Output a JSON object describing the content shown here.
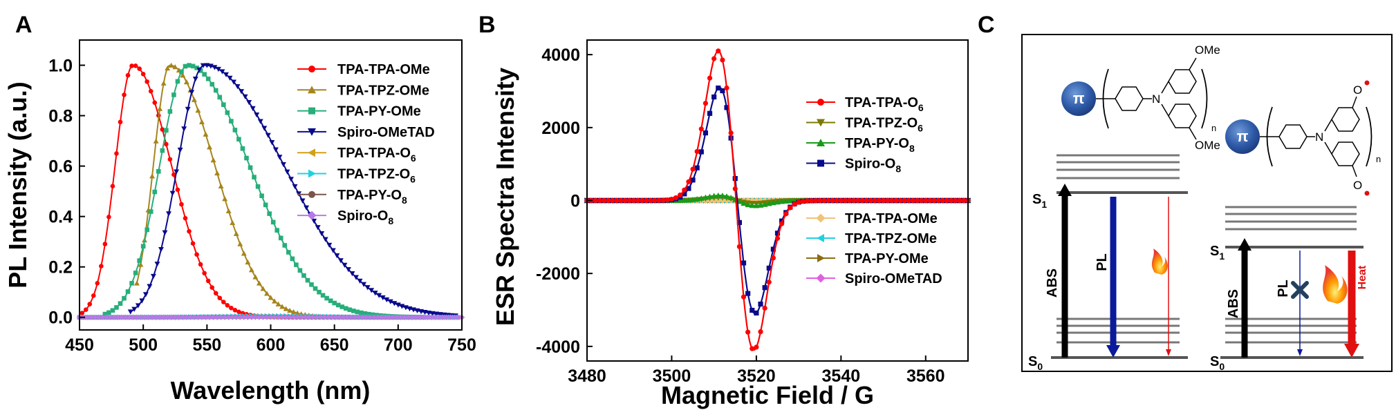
{
  "chart_data": [
    {
      "panel": "A",
      "type": "line",
      "xlabel": "Wavelength (nm)",
      "ylabel": "PL Intensity (a.u.)",
      "xlim": [
        450,
        750
      ],
      "ylim": [
        -0.05,
        1.1
      ],
      "xticks": [
        450,
        500,
        550,
        600,
        650,
        700,
        750
      ],
      "yticks": [
        0.0,
        0.2,
        0.4,
        0.6,
        0.8,
        1.0
      ],
      "xtick_labels": [
        "450",
        "500",
        "550",
        "600",
        "650",
        "700",
        "750"
      ],
      "ytick_labels": [
        "0.0",
        "0.2",
        "0.4",
        "0.6",
        "0.8",
        "1.0"
      ],
      "legend_position": "top-right",
      "series": [
        {
          "name": "TPA-TPA-OMe",
          "label_main": "TPA-TPA-OMe",
          "label_sub": "",
          "color": "#ff0000",
          "marker": "circle",
          "peak": 492,
          "sigma_left": 14,
          "sigma_right": 30,
          "amplitude": 1.0,
          "x_start": 452,
          "x_end": 720
        },
        {
          "name": "TPA-TPZ-OMe",
          "label_main": "TPA-TPZ-OMe",
          "label_sub": "",
          "color": "#a6851b",
          "marker": "triangle-up",
          "peak": 521,
          "sigma_left": 13,
          "sigma_right": 35,
          "amplitude": 1.0,
          "x_start": 495,
          "x_end": 720
        },
        {
          "name": "TPA-PY-OMe",
          "label_main": "TPA-PY-OMe",
          "label_sub": "",
          "color": "#27ae7a",
          "marker": "square",
          "peak": 535,
          "sigma_left": 22,
          "sigma_right": 48,
          "amplitude": 1.0,
          "x_start": 470,
          "x_end": 720
        },
        {
          "name": "Spiro-OMeTAD",
          "label_main": "Spiro-OMeTAD",
          "label_sub": "",
          "color": "#0a0a8c",
          "marker": "triangle-down",
          "peak": 548,
          "sigma_left": 21,
          "sigma_right": 62,
          "amplitude": 1.0,
          "x_start": 490,
          "x_end": 745
        },
        {
          "name": "TPA-TPA-O6",
          "label_main": "TPA-TPA-O",
          "label_sub": "6",
          "color": "#d4a017",
          "marker": "triangle-left",
          "peak": 600,
          "sigma_left": 40,
          "sigma_right": 40,
          "amplitude": 0.003,
          "x_start": 450,
          "x_end": 748
        },
        {
          "name": "TPA-TPZ-O6",
          "label_main": "TPA-TPZ-O",
          "label_sub": "6",
          "color": "#21d0e0",
          "marker": "triangle-right",
          "peak": 600,
          "sigma_left": 40,
          "sigma_right": 40,
          "amplitude": 0.006,
          "x_start": 450,
          "x_end": 748
        },
        {
          "name": "TPA-PY-O8",
          "label_main": "TPA-PY-O",
          "label_sub": "8",
          "color": "#7a5548",
          "marker": "circle",
          "peak": 600,
          "sigma_left": 40,
          "sigma_right": 40,
          "amplitude": 0.002,
          "x_start": 450,
          "x_end": 720
        },
        {
          "name": "Spiro-O8",
          "label_main": "Spiro-O",
          "label_sub": "8",
          "color": "#b67ae8",
          "marker": "diamond",
          "peak": 600,
          "sigma_left": 40,
          "sigma_right": 40,
          "amplitude": 0.001,
          "x_start": 450,
          "x_end": 750
        }
      ]
    },
    {
      "panel": "B",
      "type": "line",
      "xlabel": "Magnetic Field / G",
      "ylabel": "ESR Spectra Intensity",
      "xlim": [
        3480,
        3570
      ],
      "ylim": [
        -4400,
        4400
      ],
      "xticks": [
        3480,
        3500,
        3520,
        3540,
        3560
      ],
      "yticks": [
        -4000,
        -2000,
        0,
        2000,
        4000
      ],
      "xtick_labels": [
        "3480",
        "3500",
        "3520",
        "3540",
        "3560"
      ],
      "ytick_labels": [
        "-4000",
        "-2000",
        "0",
        "2000",
        "4000"
      ],
      "legend_position": "right",
      "series": [
        {
          "name": "TPA-TPA-O6",
          "label_main": "TPA-TPA-O",
          "label_sub": "6",
          "color": "#ff0000",
          "marker": "circle",
          "center": 3515.2,
          "width": 4.2,
          "amplitude": 4100
        },
        {
          "name": "TPA-TPZ-O6",
          "label_main": "TPA-TPZ-O",
          "label_sub": "6",
          "color": "#7a7a00",
          "marker": "triangle-down",
          "center": 3515.5,
          "width": 4.2,
          "amplitude": 80
        },
        {
          "name": "TPA-PY-O8",
          "label_main": "TPA-PY-O",
          "label_sub": "8",
          "color": "#1a9a1a",
          "marker": "triangle-up",
          "center": 3515.5,
          "width": 4.2,
          "amplitude": 140
        },
        {
          "name": "Spiro-O8",
          "label_main": "Spiro-O",
          "label_sub": "8",
          "color": "#0a0a8c",
          "marker": "square",
          "center": 3515.5,
          "width": 4.2,
          "amplitude": 3100
        },
        {
          "name": "TPA-TPA-OMe",
          "label_main": "TPA-TPA-OMe",
          "label_sub": "",
          "color": "#f0c27a",
          "marker": "diamond",
          "center": 3515.5,
          "width": 4.2,
          "amplitude": 0
        },
        {
          "name": "TPA-TPZ-OMe",
          "label_main": "TPA-TPZ-OMe",
          "label_sub": "",
          "color": "#21d0e0",
          "marker": "triangle-left",
          "center": 3515.5,
          "width": 4.2,
          "amplitude": 0
        },
        {
          "name": "TPA-PY-OMe",
          "label_main": "TPA-PY-OMe",
          "label_sub": "",
          "color": "#8b6d12",
          "marker": "triangle-right",
          "center": 3515.5,
          "width": 4.2,
          "amplitude": 0
        },
        {
          "name": "Spiro-OMeTAD",
          "label_main": "Spiro-OMeTAD",
          "label_sub": "",
          "color": "#e060e0",
          "marker": "diamond",
          "center": 3515.5,
          "width": 4.2,
          "amplitude": 0
        }
      ]
    }
  ],
  "panels": {
    "a_letter": "A",
    "b_letter": "B",
    "c_letter": "C"
  },
  "diagram": {
    "pi": "π",
    "ome_top": "OMe",
    "ome_bottom": "OMe",
    "n_atom": "N",
    "n_sub": "n",
    "o_radical": "O",
    "s1_main": "S",
    "s1_sub": "1",
    "s0_main": "S",
    "s0_sub": "0",
    "abs": "ABS",
    "pl": "PL",
    "heat": "Heat"
  }
}
